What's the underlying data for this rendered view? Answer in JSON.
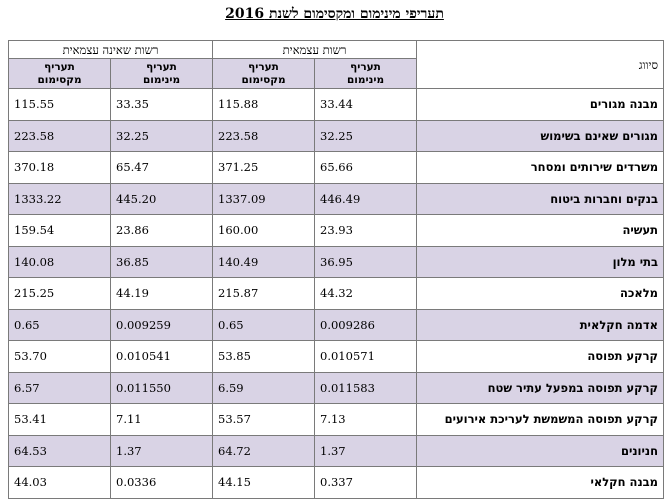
{
  "title": "תעריפי מינימום ומקסימום לשנת 2016",
  "headers": {
    "classification": "סיווג",
    "group_independent": "רשות עצמאית",
    "group_non_independent": "רשות שאינה עצמאית",
    "min_line1": "תעריף",
    "min_line2": "מינימום",
    "max_line1": "תעריף",
    "max_line2": "מקסימום"
  },
  "rows": [
    {
      "label": "מבנה מגורים",
      "ind_min": "33.44",
      "ind_max": "115.88",
      "non_min": "33.35",
      "non_max": "115.55"
    },
    {
      "label": "מגורים שאינם בשימוש",
      "ind_min": "32.25",
      "ind_max": "223.58",
      "non_min": "32.25",
      "non_max": "223.58"
    },
    {
      "label": "משרדים שירותים ומסחר",
      "ind_min": "65.66",
      "ind_max": "371.25",
      "non_min": "65.47",
      "non_max": "370.18"
    },
    {
      "label": "בנקים וחברות ביטוח",
      "ind_min": "446.49",
      "ind_max": "1337.09",
      "non_min": "445.20",
      "non_max": "1333.22"
    },
    {
      "label": "תעשיה",
      "ind_min": "23.93",
      "ind_max": "160.00",
      "non_min": "23.86",
      "non_max": "159.54"
    },
    {
      "label": "בתי מלון",
      "ind_min": "36.95",
      "ind_max": "140.49",
      "non_min": "36.85",
      "non_max": "140.08"
    },
    {
      "label": "מלאכה",
      "ind_min": "44.32",
      "ind_max": "215.87",
      "non_min": "44.19",
      "non_max": "215.25"
    },
    {
      "label": "אדמה חקלאית",
      "ind_min": "0.009286",
      "ind_max": "0.65",
      "non_min": "0.009259",
      "non_max": "0.65"
    },
    {
      "label": "קרקע תפוסה",
      "ind_min": "0.010571",
      "ind_max": "53.85",
      "non_min": "0.010541",
      "non_max": "53.70"
    },
    {
      "label": "קרקע תפוסה במפעל עתיר שטח",
      "ind_min": "0.011583",
      "ind_max": "6.59",
      "non_min": "0.011550",
      "non_max": "6.57"
    },
    {
      "label": "קרקע תפוסה המשמשת לעריכת אירועים",
      "ind_min": "7.13",
      "ind_max": "53.57",
      "non_min": "7.11",
      "non_max": "53.41"
    },
    {
      "label": "חניונים",
      "ind_min": "1.37",
      "ind_max": "64.72",
      "non_min": "1.37",
      "non_max": "64.53"
    },
    {
      "label": "מבנה חקלאי",
      "ind_min": "0.337",
      "ind_max": "44.15",
      "non_min": "0.0336",
      "non_max": "44.03"
    }
  ]
}
